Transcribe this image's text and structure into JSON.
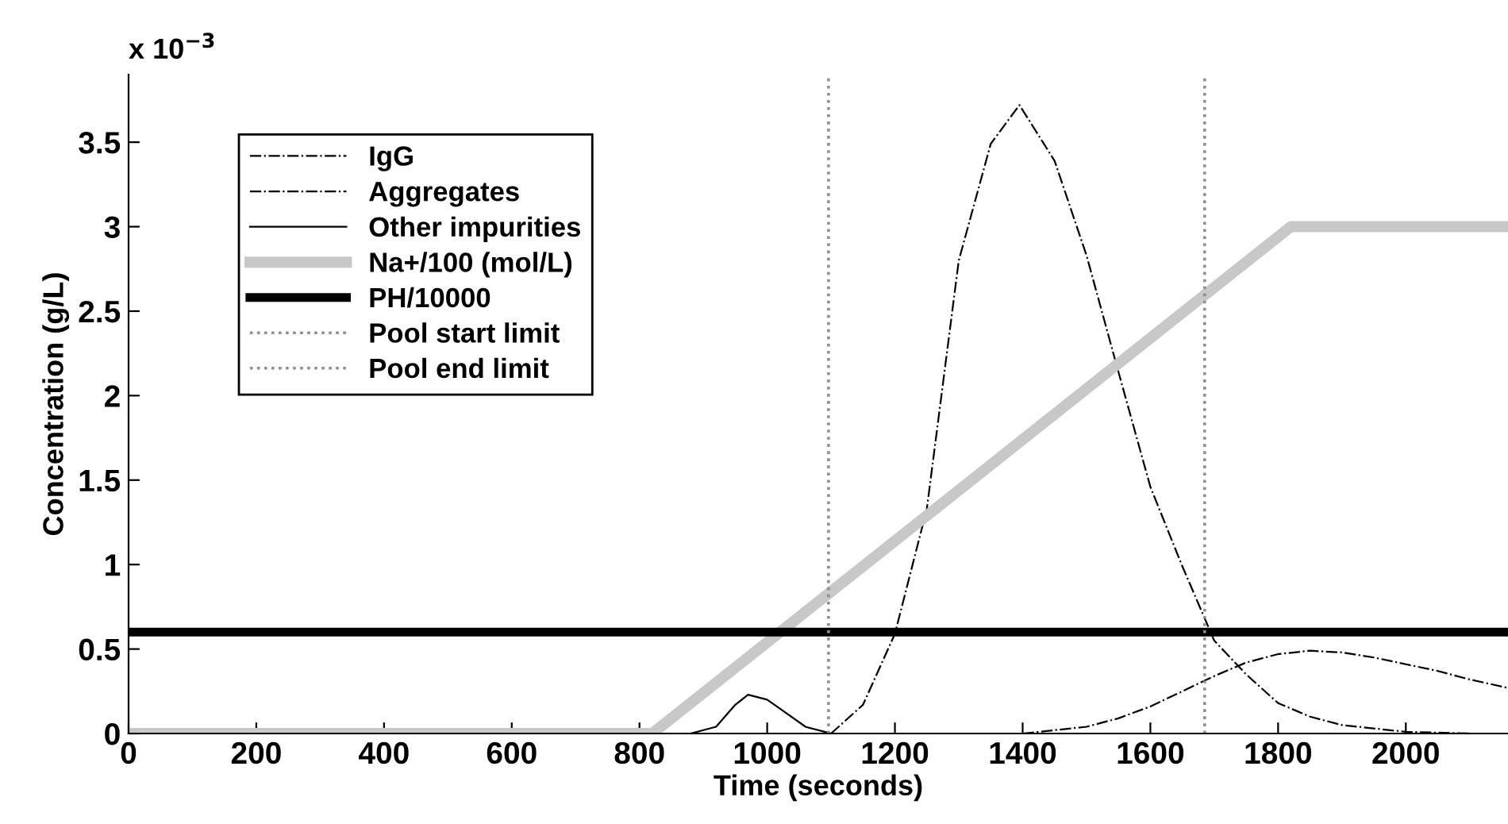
{
  "chart_data": {
    "type": "line",
    "xlabel": "Time (seconds)",
    "ylabel": "Concentration (g/L)",
    "annotations": [
      "x 10$^{−3}$"
    ],
    "xlim": [
      0,
      2160
    ],
    "ylim": [
      0,
      3.9
    ],
    "xticks": [
      0,
      200,
      400,
      600,
      800,
      1000,
      1200,
      1400,
      1600,
      1800,
      2000
    ],
    "yticks": [
      0,
      0.5,
      1,
      1.5,
      2,
      2.5,
      3,
      3.5
    ],
    "legend": "top left",
    "grid": false,
    "series": [
      {
        "name": "IgG",
        "color": "#000000",
        "line_style": "dashdot",
        "x": [
          1100,
          1150,
          1200,
          1250,
          1300,
          1350,
          1395,
          1450,
          1500,
          1550,
          1600,
          1650,
          1700,
          1750,
          1800,
          1850,
          1900,
          2000,
          2100,
          2160
        ],
        "values": [
          0.0,
          0.17,
          0.59,
          1.33,
          2.8,
          3.49,
          3.72,
          3.39,
          2.83,
          2.14,
          1.46,
          0.99,
          0.55,
          0.35,
          0.18,
          0.1,
          0.05,
          0.01,
          0.0,
          0.0
        ]
      },
      {
        "name": "Aggregates",
        "color": "#000000",
        "line_style": "dashdot",
        "x": [
          1400,
          1500,
          1550,
          1600,
          1650,
          1700,
          1750,
          1800,
          1850,
          1900,
          1950,
          2000,
          2050,
          2100,
          2160
        ],
        "values": [
          0.0,
          0.04,
          0.09,
          0.16,
          0.25,
          0.34,
          0.42,
          0.47,
          0.49,
          0.48,
          0.45,
          0.41,
          0.37,
          0.32,
          0.27
        ]
      },
      {
        "name": "Other impurities",
        "color": "#000000",
        "line_style": "solid",
        "x": [
          0,
          880,
          920,
          950,
          970,
          1000,
          1030,
          1060,
          1090,
          1100,
          2160
        ],
        "values": [
          0,
          0,
          0.04,
          0.17,
          0.23,
          0.2,
          0.12,
          0.04,
          0.01,
          0,
          0
        ]
      },
      {
        "name": "Na+/100 (mol/L)",
        "color": "#c8c8c8",
        "line_style": "solid",
        "x": [
          0,
          820,
          1820,
          2160
        ],
        "values": [
          0,
          0,
          3.0,
          3.0
        ]
      },
      {
        "name": "PH/10000",
        "color": "#000000",
        "line_style": "solid",
        "x": [
          0,
          2160
        ],
        "values": [
          0.6,
          0.6
        ]
      },
      {
        "name": "Pool start limit",
        "color": "#909090",
        "line_style": "dotted",
        "x": [
          1096,
          1096
        ],
        "values": [
          0,
          3.9
        ]
      },
      {
        "name": "Pool end limit",
        "color": "#909090",
        "line_style": "dotted",
        "x": [
          1685,
          1685
        ],
        "values": [
          0,
          3.9
        ]
      }
    ]
  }
}
